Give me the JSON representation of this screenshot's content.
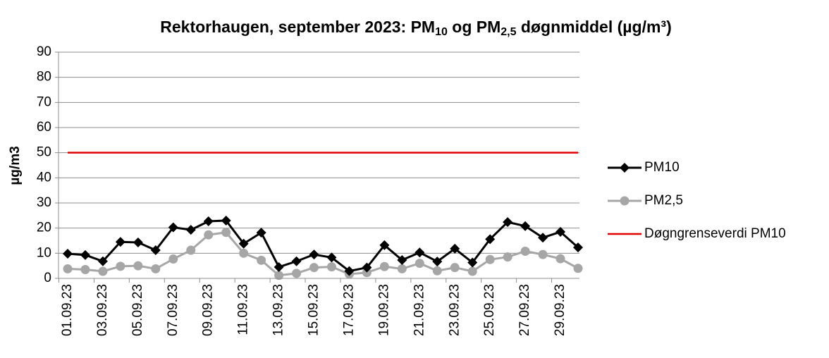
{
  "chart_data": {
    "type": "line",
    "title_parts": [
      "Rektorhaugen, september 2023: PM",
      "10",
      " og PM",
      "2,5",
      " døgnmiddel (µg/m³)"
    ],
    "y_label": "µg/m3",
    "categories": [
      "01.09.23",
      null,
      "03.09.23",
      null,
      "05.09.23",
      null,
      "07.09.23",
      null,
      "09.09.23",
      null,
      "11.09.23",
      null,
      "13.09.23",
      null,
      "15.09.23",
      null,
      "17.09.23",
      null,
      "19.09.23",
      null,
      "21.09.23",
      null,
      "23.09.23",
      null,
      "25.09.23",
      null,
      "27.09.23",
      null,
      "29.09.23",
      null
    ],
    "series": [
      {
        "name": "PM10",
        "color": "#000000",
        "marker": "diamond",
        "values": [
          9.8,
          9.3,
          6.8,
          14.5,
          14.3,
          11.2,
          20.3,
          19.3,
          22.7,
          23,
          13.8,
          18.2,
          4.5,
          6.8,
          9.5,
          8.3,
          2.9,
          4.3,
          13.2,
          7.3,
          10.3,
          6.7,
          11.8,
          6.3,
          15.6,
          22.4,
          20.8,
          16.2,
          18.5,
          12.3
        ]
      },
      {
        "name": "PM2,5",
        "color": "#a6a6a6",
        "marker": "circle",
        "values": [
          3.8,
          3.5,
          2.8,
          4.8,
          5,
          3.8,
          7.7,
          11.2,
          17.3,
          18.3,
          10,
          7.2,
          1.2,
          2,
          4.3,
          4.6,
          1.7,
          2.3,
          4.7,
          3.8,
          6,
          3,
          4.3,
          2.8,
          7.5,
          8.5,
          10.8,
          9.5,
          7.8,
          4
        ]
      },
      {
        "name": "Døgngrenseverdi PM10",
        "color": "#e00000",
        "marker": null,
        "values": [
          50,
          50,
          50,
          50,
          50,
          50,
          50,
          50,
          50,
          50,
          50,
          50,
          50,
          50,
          50,
          50,
          50,
          50,
          50,
          50,
          50,
          50,
          50,
          50,
          50,
          50,
          50,
          50,
          50,
          50
        ]
      }
    ],
    "ylim": [
      0,
      90
    ],
    "yticks": [
      0,
      10,
      20,
      30,
      40,
      50,
      60,
      70,
      80,
      90
    ],
    "grid": true,
    "legend": "right"
  }
}
